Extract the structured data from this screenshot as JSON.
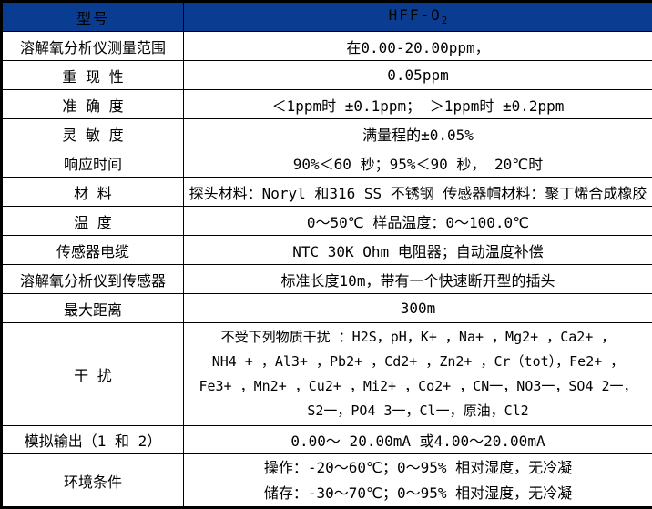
{
  "colors": {
    "header_bg": "#0a3d91",
    "header_text": "#ffffff",
    "border": "#000000",
    "body_text": "#000000",
    "background": "#ffffff"
  },
  "table": {
    "header": {
      "model_label": "型号",
      "model_value_base": "HFF-O",
      "model_value_sub": "2"
    },
    "rows": [
      {
        "label": "溶解氧分析仪测量范围",
        "value": "在0.00-20.00ppm，"
      },
      {
        "label": "重 现 性",
        "value": "0.05ppm"
      },
      {
        "label": "准 确 度",
        "value": "＜1ppm时 ±0.1ppm； ＞1ppm时 ±0.2ppm"
      },
      {
        "label": "灵 敏 度",
        "value": "满量程的±0.05%"
      },
      {
        "label": "响应时间",
        "value": "90%＜60 秒；95%＜90 秒， 20℃时"
      },
      {
        "label": "材 料",
        "value": "探头材料：Noryl 和316 SS 不锈钢 传感器帽材料：聚丁烯合成橡胶"
      },
      {
        "label": "温 度",
        "value": "0～50℃ 样品温度：0～100.0℃"
      },
      {
        "label": "传感器电缆",
        "value": "NTC 30K Ohm 电阻器；自动温度补偿"
      },
      {
        "label": "溶解氧分析仪到传感器",
        "value": "标准长度10m，带有一个快速断开型的插头"
      },
      {
        "label": "最大距离",
        "value": "300m"
      }
    ],
    "interference": {
      "label": "干 扰",
      "lines": [
        "不受下列物质干扰 ：H2S，pH，K+ ，Na+ ，Mg2+ ，Ca2+ ，",
        "NH4 + ，Al3+ ，Pb2+ ，Cd2+ ，Zn2+ ，Cr（tot），Fe2+ ，",
        "Fe3+ ，Mn2+ ，Cu2+ ，Mi2+ ，Co2+ ，CN一，NO3一，SO4 2一，",
        "S2一，PO4 3一，Cl一，原油，Cl2"
      ]
    },
    "analog_output": {
      "label": "模拟输出（1 和 2）",
      "value": "0.00～ 20.00mA 或4.00～20.00mA"
    },
    "environment": {
      "label": "环境条件",
      "lines": [
        "操作：-20～60℃；0～95% 相对湿度，无冷凝",
        "储存：-30～70℃；0～95% 相对湿度，无冷凝"
      ]
    }
  }
}
